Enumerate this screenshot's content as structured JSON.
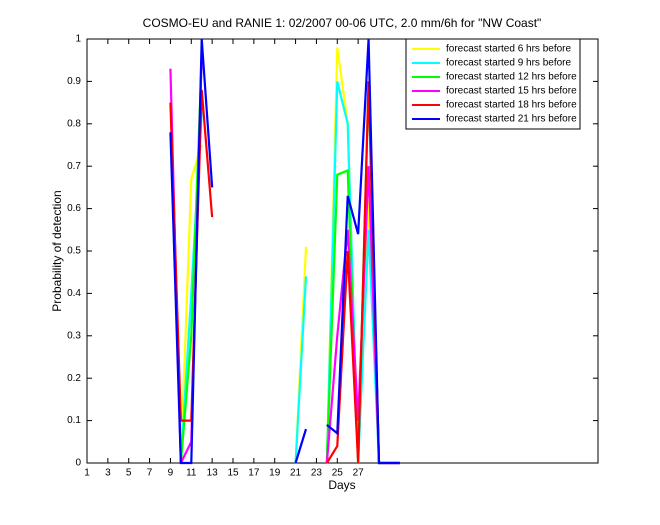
{
  "chart_data": {
    "type": "line",
    "title": "COSMO-EU and RANIE 1: 02/2007 00-06 UTC, 2.0 mm/6h for \"NW Coast\"",
    "x_label": "Days",
    "y_label": "Probability of detection",
    "x": [
      1,
      2,
      3,
      4,
      5,
      6,
      7,
      8,
      9,
      10,
      11,
      12,
      13,
      14,
      15,
      16,
      17,
      18,
      19,
      20,
      21,
      22,
      23,
      24,
      25,
      26,
      27,
      28,
      29,
      30,
      31
    ],
    "series": [
      {
        "name": "forecast started 6 hrs before",
        "color": "#ffff00",
        "values": [
          null,
          null,
          null,
          null,
          null,
          null,
          null,
          null,
          null,
          0,
          0.67,
          0.75,
          null,
          null,
          null,
          null,
          null,
          null,
          null,
          null,
          0,
          0.51,
          null,
          0,
          0.98,
          0.8,
          0,
          0.62,
          0,
          0,
          0
        ]
      },
      {
        "name": "forecast started 9 hrs before",
        "color": "#00ffff",
        "values": [
          null,
          null,
          null,
          null,
          null,
          null,
          null,
          null,
          null,
          0,
          0.4,
          0.83,
          null,
          null,
          null,
          null,
          null,
          null,
          null,
          null,
          0,
          0.44,
          null,
          0,
          0.9,
          0.8,
          0,
          0.55,
          0,
          0,
          0
        ]
      },
      {
        "name": "forecast started 12 hrs before",
        "color": "#00ff00",
        "values": [
          null,
          null,
          null,
          null,
          null,
          null,
          null,
          null,
          null,
          0,
          0.3,
          0.95,
          null,
          null,
          null,
          null,
          null,
          null,
          null,
          null,
          null,
          null,
          null,
          0,
          0.68,
          0.69,
          0,
          0.9,
          0,
          0,
          0
        ]
      },
      {
        "name": "forecast started 15 hrs before",
        "color": "#ff00ff",
        "values": [
          null,
          null,
          null,
          null,
          null,
          null,
          null,
          null,
          0.93,
          0,
          0.05,
          0.97,
          null,
          null,
          null,
          null,
          null,
          null,
          null,
          null,
          null,
          null,
          null,
          0,
          0.3,
          0.55,
          0.1,
          0.7,
          0,
          0,
          0
        ]
      },
      {
        "name": "forecast started 18 hrs before",
        "color": "#ff0000",
        "values": [
          null,
          null,
          null,
          null,
          null,
          null,
          null,
          null,
          0.85,
          0.1,
          0.1,
          0.88,
          0.58,
          null,
          null,
          null,
          null,
          null,
          null,
          null,
          null,
          null,
          null,
          0,
          0.04,
          0.5,
          0,
          0.9,
          0,
          0,
          0
        ]
      },
      {
        "name": "forecast started 21 hrs before",
        "color": "#0000ff",
        "values": [
          null,
          null,
          null,
          null,
          null,
          null,
          null,
          null,
          0.78,
          0,
          0,
          1,
          0.65,
          null,
          null,
          null,
          null,
          null,
          null,
          null,
          0,
          0.08,
          null,
          0.09,
          0.07,
          0.63,
          0.54,
          1,
          0,
          0,
          0
        ]
      }
    ],
    "xlim": [
      1,
      50
    ],
    "ylim": [
      0,
      1
    ],
    "xticks": [
      1,
      3,
      5,
      7,
      9,
      11,
      13,
      15,
      17,
      19,
      21,
      23,
      25,
      27
    ],
    "yticks": [
      0,
      0.1,
      0.2,
      0.3,
      0.4,
      0.5,
      0.6,
      0.7,
      0.8,
      0.9,
      1
    ],
    "legend": "top-right"
  }
}
